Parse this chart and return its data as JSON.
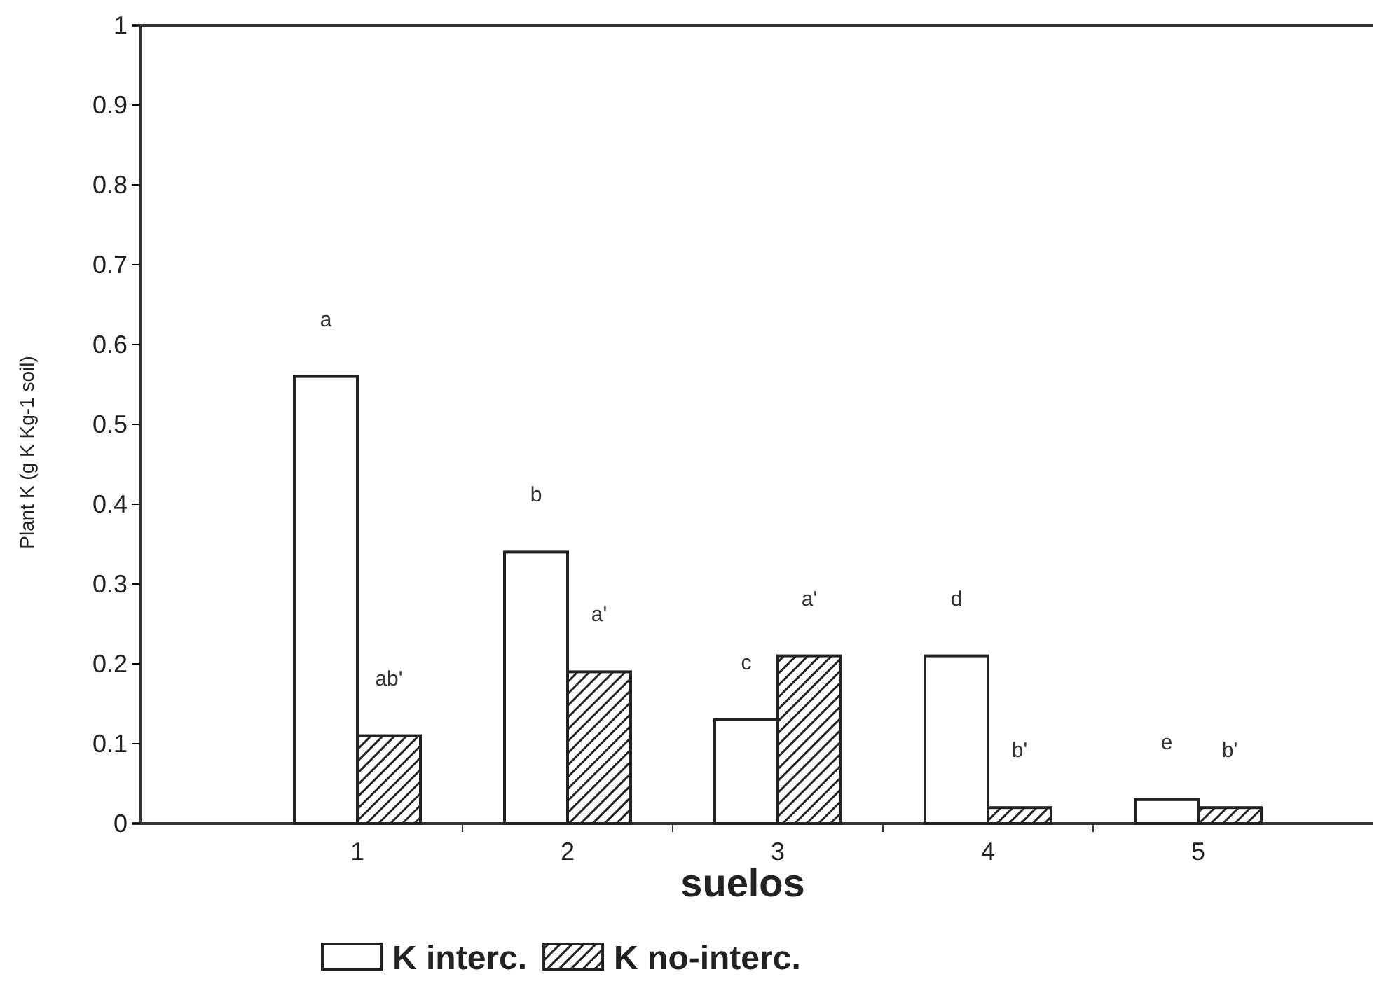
{
  "chart_data": {
    "type": "bar",
    "xlabel": "suelos",
    "ylabel": "Plant K (g K Kg-1 soil)",
    "categories": [
      "1",
      "2",
      "3",
      "4",
      "5"
    ],
    "series": [
      {
        "name": "K interc.",
        "color": "#ffffff",
        "values": [
          0.56,
          0.34,
          0.13,
          0.21,
          0.03
        ]
      },
      {
        "name": "K no-interc.",
        "color": "#222222",
        "values": [
          0.11,
          0.19,
          0.21,
          0.02,
          0.02
        ]
      }
    ],
    "ylim": [
      0,
      1
    ],
    "yticks": [
      0,
      0.1,
      0.2,
      0.3,
      0.4,
      0.5,
      0.6,
      0.7,
      0.8,
      0.9,
      1
    ],
    "legend": "bottom",
    "annotations": [
      "a",
      "ab'",
      "b",
      "a'",
      "c",
      "a'",
      "d",
      "b'",
      "e",
      "b'"
    ]
  }
}
